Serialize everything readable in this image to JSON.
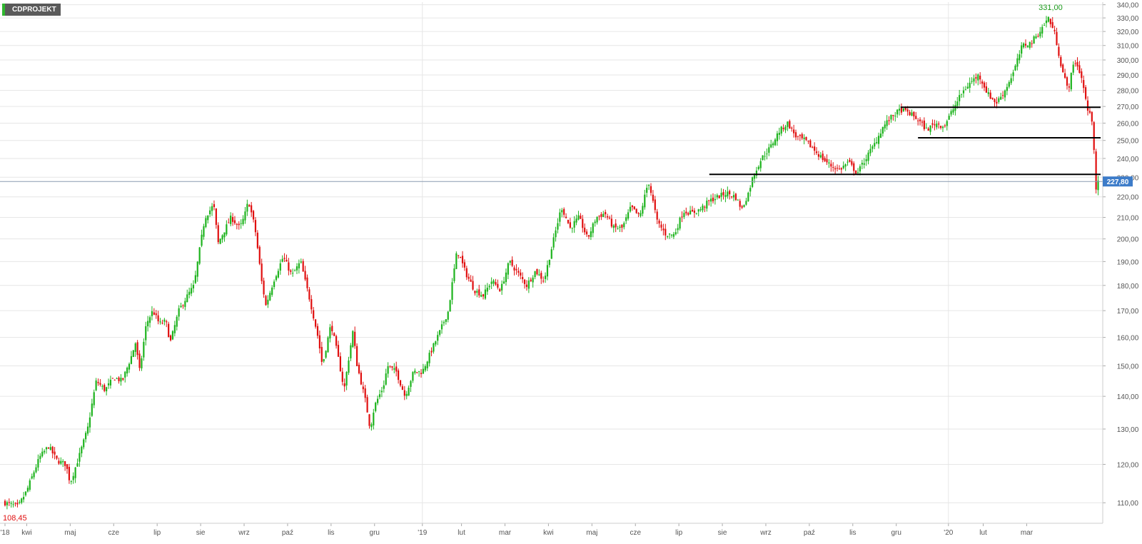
{
  "ticker": "CDPROJEKT",
  "colors": {
    "up": "#1db31d",
    "down": "#e00f0f",
    "grid": "#e6e6e6",
    "axis_text": "#555555",
    "current_price_bg": "#3d7cc9",
    "current_price_line": "#8a9bb0",
    "support_line": "#000000"
  },
  "chart_data": {
    "type": "candlestick",
    "title": "",
    "y_ticks": [
      "110,00",
      "120,00",
      "130,00",
      "140,00",
      "150,00",
      "160,00",
      "170,00",
      "180,00",
      "190,00",
      "200,00",
      "210,00",
      "220,00",
      "230,00",
      "240,00",
      "250,00",
      "260,00",
      "270,00",
      "280,00",
      "290,00",
      "300,00",
      "310,00",
      "320,00",
      "330,00",
      "340,00"
    ],
    "y_scale": "log",
    "ylim": [
      105,
      342
    ],
    "x_ticks": [
      "'18",
      "kwi",
      "maj",
      "cze",
      "lip",
      "sie",
      "wrz",
      "paź",
      "lis",
      "gru",
      "'19",
      "lut",
      "mar",
      "kwi",
      "maj",
      "cze",
      "lip",
      "sie",
      "wrz",
      "paź",
      "lis",
      "gru",
      "'20",
      "lut",
      "mar"
    ],
    "x_ticks_month_index": [
      0,
      0.5,
      1.5,
      2.5,
      3.5,
      4.5,
      5.5,
      6.5,
      7.5,
      8.5,
      9.5,
      10.5,
      11.5,
      12.5,
      13.5,
      14.5,
      15.5,
      16.5,
      17.5,
      18.5,
      19.5,
      20.5,
      21.5,
      22.5,
      23.5
    ],
    "x_range_months": [
      0,
      24.4
    ],
    "close_path": [
      [
        0.0,
        110
      ],
      [
        0.3,
        109
      ],
      [
        0.5,
        113
      ],
      [
        0.8,
        122
      ],
      [
        1.0,
        125
      ],
      [
        1.2,
        121
      ],
      [
        1.4,
        120
      ],
      [
        1.5,
        115
      ],
      [
        1.7,
        122
      ],
      [
        1.9,
        130
      ],
      [
        2.1,
        145
      ],
      [
        2.3,
        142
      ],
      [
        2.5,
        146
      ],
      [
        2.7,
        145
      ],
      [
        2.9,
        153
      ],
      [
        3.0,
        158
      ],
      [
        3.1,
        148
      ],
      [
        3.25,
        165
      ],
      [
        3.4,
        170
      ],
      [
        3.55,
        165
      ],
      [
        3.7,
        166
      ],
      [
        3.8,
        158
      ],
      [
        4.0,
        170
      ],
      [
        4.2,
        176
      ],
      [
        4.35,
        180
      ],
      [
        4.6,
        210
      ],
      [
        4.8,
        216
      ],
      [
        4.9,
        198
      ],
      [
        5.0,
        202
      ],
      [
        5.2,
        210
      ],
      [
        5.4,
        205
      ],
      [
        5.5,
        210
      ],
      [
        5.6,
        218
      ],
      [
        5.75,
        205
      ],
      [
        5.9,
        182
      ],
      [
        6.0,
        172
      ],
      [
        6.2,
        183
      ],
      [
        6.4,
        192
      ],
      [
        6.6,
        184
      ],
      [
        6.8,
        190
      ],
      [
        6.9,
        182
      ],
      [
        7.0,
        175
      ],
      [
        7.2,
        160
      ],
      [
        7.3,
        150
      ],
      [
        7.5,
        165
      ],
      [
        7.7,
        150
      ],
      [
        7.8,
        142
      ],
      [
        7.9,
        152
      ],
      [
        8.0,
        162
      ],
      [
        8.1,
        150
      ],
      [
        8.3,
        138
      ],
      [
        8.4,
        130
      ],
      [
        8.5,
        137
      ],
      [
        8.7,
        143
      ],
      [
        8.8,
        150
      ],
      [
        9.0,
        148
      ],
      [
        9.2,
        140
      ],
      [
        9.4,
        148
      ],
      [
        9.6,
        148
      ],
      [
        9.8,
        155
      ],
      [
        10.0,
        162
      ],
      [
        10.2,
        170
      ],
      [
        10.4,
        195
      ],
      [
        10.6,
        185
      ],
      [
        10.8,
        178
      ],
      [
        11.0,
        176
      ],
      [
        11.2,
        182
      ],
      [
        11.4,
        178
      ],
      [
        11.6,
        190
      ],
      [
        11.8,
        185
      ],
      [
        12.0,
        180
      ],
      [
        12.2,
        186
      ],
      [
        12.4,
        182
      ],
      [
        12.6,
        198
      ],
      [
        12.8,
        215
      ],
      [
        13.0,
        205
      ],
      [
        13.2,
        210
      ],
      [
        13.4,
        200
      ],
      [
        13.6,
        210
      ],
      [
        13.8,
        212
      ],
      [
        14.0,
        205
      ],
      [
        14.2,
        205
      ],
      [
        14.4,
        215
      ],
      [
        14.6,
        210
      ],
      [
        14.8,
        228
      ],
      [
        15.0,
        208
      ],
      [
        15.2,
        202
      ],
      [
        15.4,
        202
      ],
      [
        15.6,
        213
      ],
      [
        15.8,
        212
      ],
      [
        16.0,
        214
      ],
      [
        16.2,
        218
      ],
      [
        16.4,
        220
      ],
      [
        16.6,
        222
      ],
      [
        16.8,
        220
      ],
      [
        16.95,
        214
      ],
      [
        17.1,
        222
      ],
      [
        17.2,
        230
      ],
      [
        17.4,
        240
      ],
      [
        17.6,
        246
      ],
      [
        17.8,
        255
      ],
      [
        18.0,
        260
      ],
      [
        18.2,
        252
      ],
      [
        18.4,
        250
      ],
      [
        18.6,
        245
      ],
      [
        18.8,
        240
      ],
      [
        19.0,
        236
      ],
      [
        19.2,
        234
      ],
      [
        19.4,
        238
      ],
      [
        19.6,
        232
      ],
      [
        19.8,
        240
      ],
      [
        20.0,
        248
      ],
      [
        20.2,
        258
      ],
      [
        20.4,
        264
      ],
      [
        20.6,
        268
      ],
      [
        20.8,
        266
      ],
      [
        21.0,
        262
      ],
      [
        21.2,
        256
      ],
      [
        21.4,
        260
      ],
      [
        21.6,
        258
      ],
      [
        21.8,
        268
      ],
      [
        22.0,
        278
      ],
      [
        22.2,
        285
      ],
      [
        22.4,
        290
      ],
      [
        22.6,
        278
      ],
      [
        22.8,
        272
      ],
      [
        23.0,
        280
      ],
      [
        23.2,
        292
      ],
      [
        23.4,
        310
      ],
      [
        23.6,
        312
      ],
      [
        23.8,
        320
      ],
      [
        24.0,
        330
      ],
      [
        24.15,
        318
      ],
      [
        24.3,
        295
      ],
      [
        24.45,
        280
      ],
      [
        24.6,
        300
      ],
      [
        24.75,
        290
      ],
      [
        24.9,
        268
      ],
      [
        25.0,
        262
      ],
      [
        25.05,
        245
      ],
      [
        25.1,
        222
      ],
      [
        25.15,
        227.8
      ]
    ],
    "support_lines": [
      {
        "from": 16.2,
        "to": 25.2,
        "y": 231.5
      },
      {
        "from": 21.0,
        "to": 25.2,
        "y": 251.5
      },
      {
        "from": 20.6,
        "to": 25.2,
        "y": 269.5
      }
    ],
    "max_label": "331,00",
    "min_label": "108,45",
    "current_price": "227,80",
    "current_price_value": 227.8
  }
}
